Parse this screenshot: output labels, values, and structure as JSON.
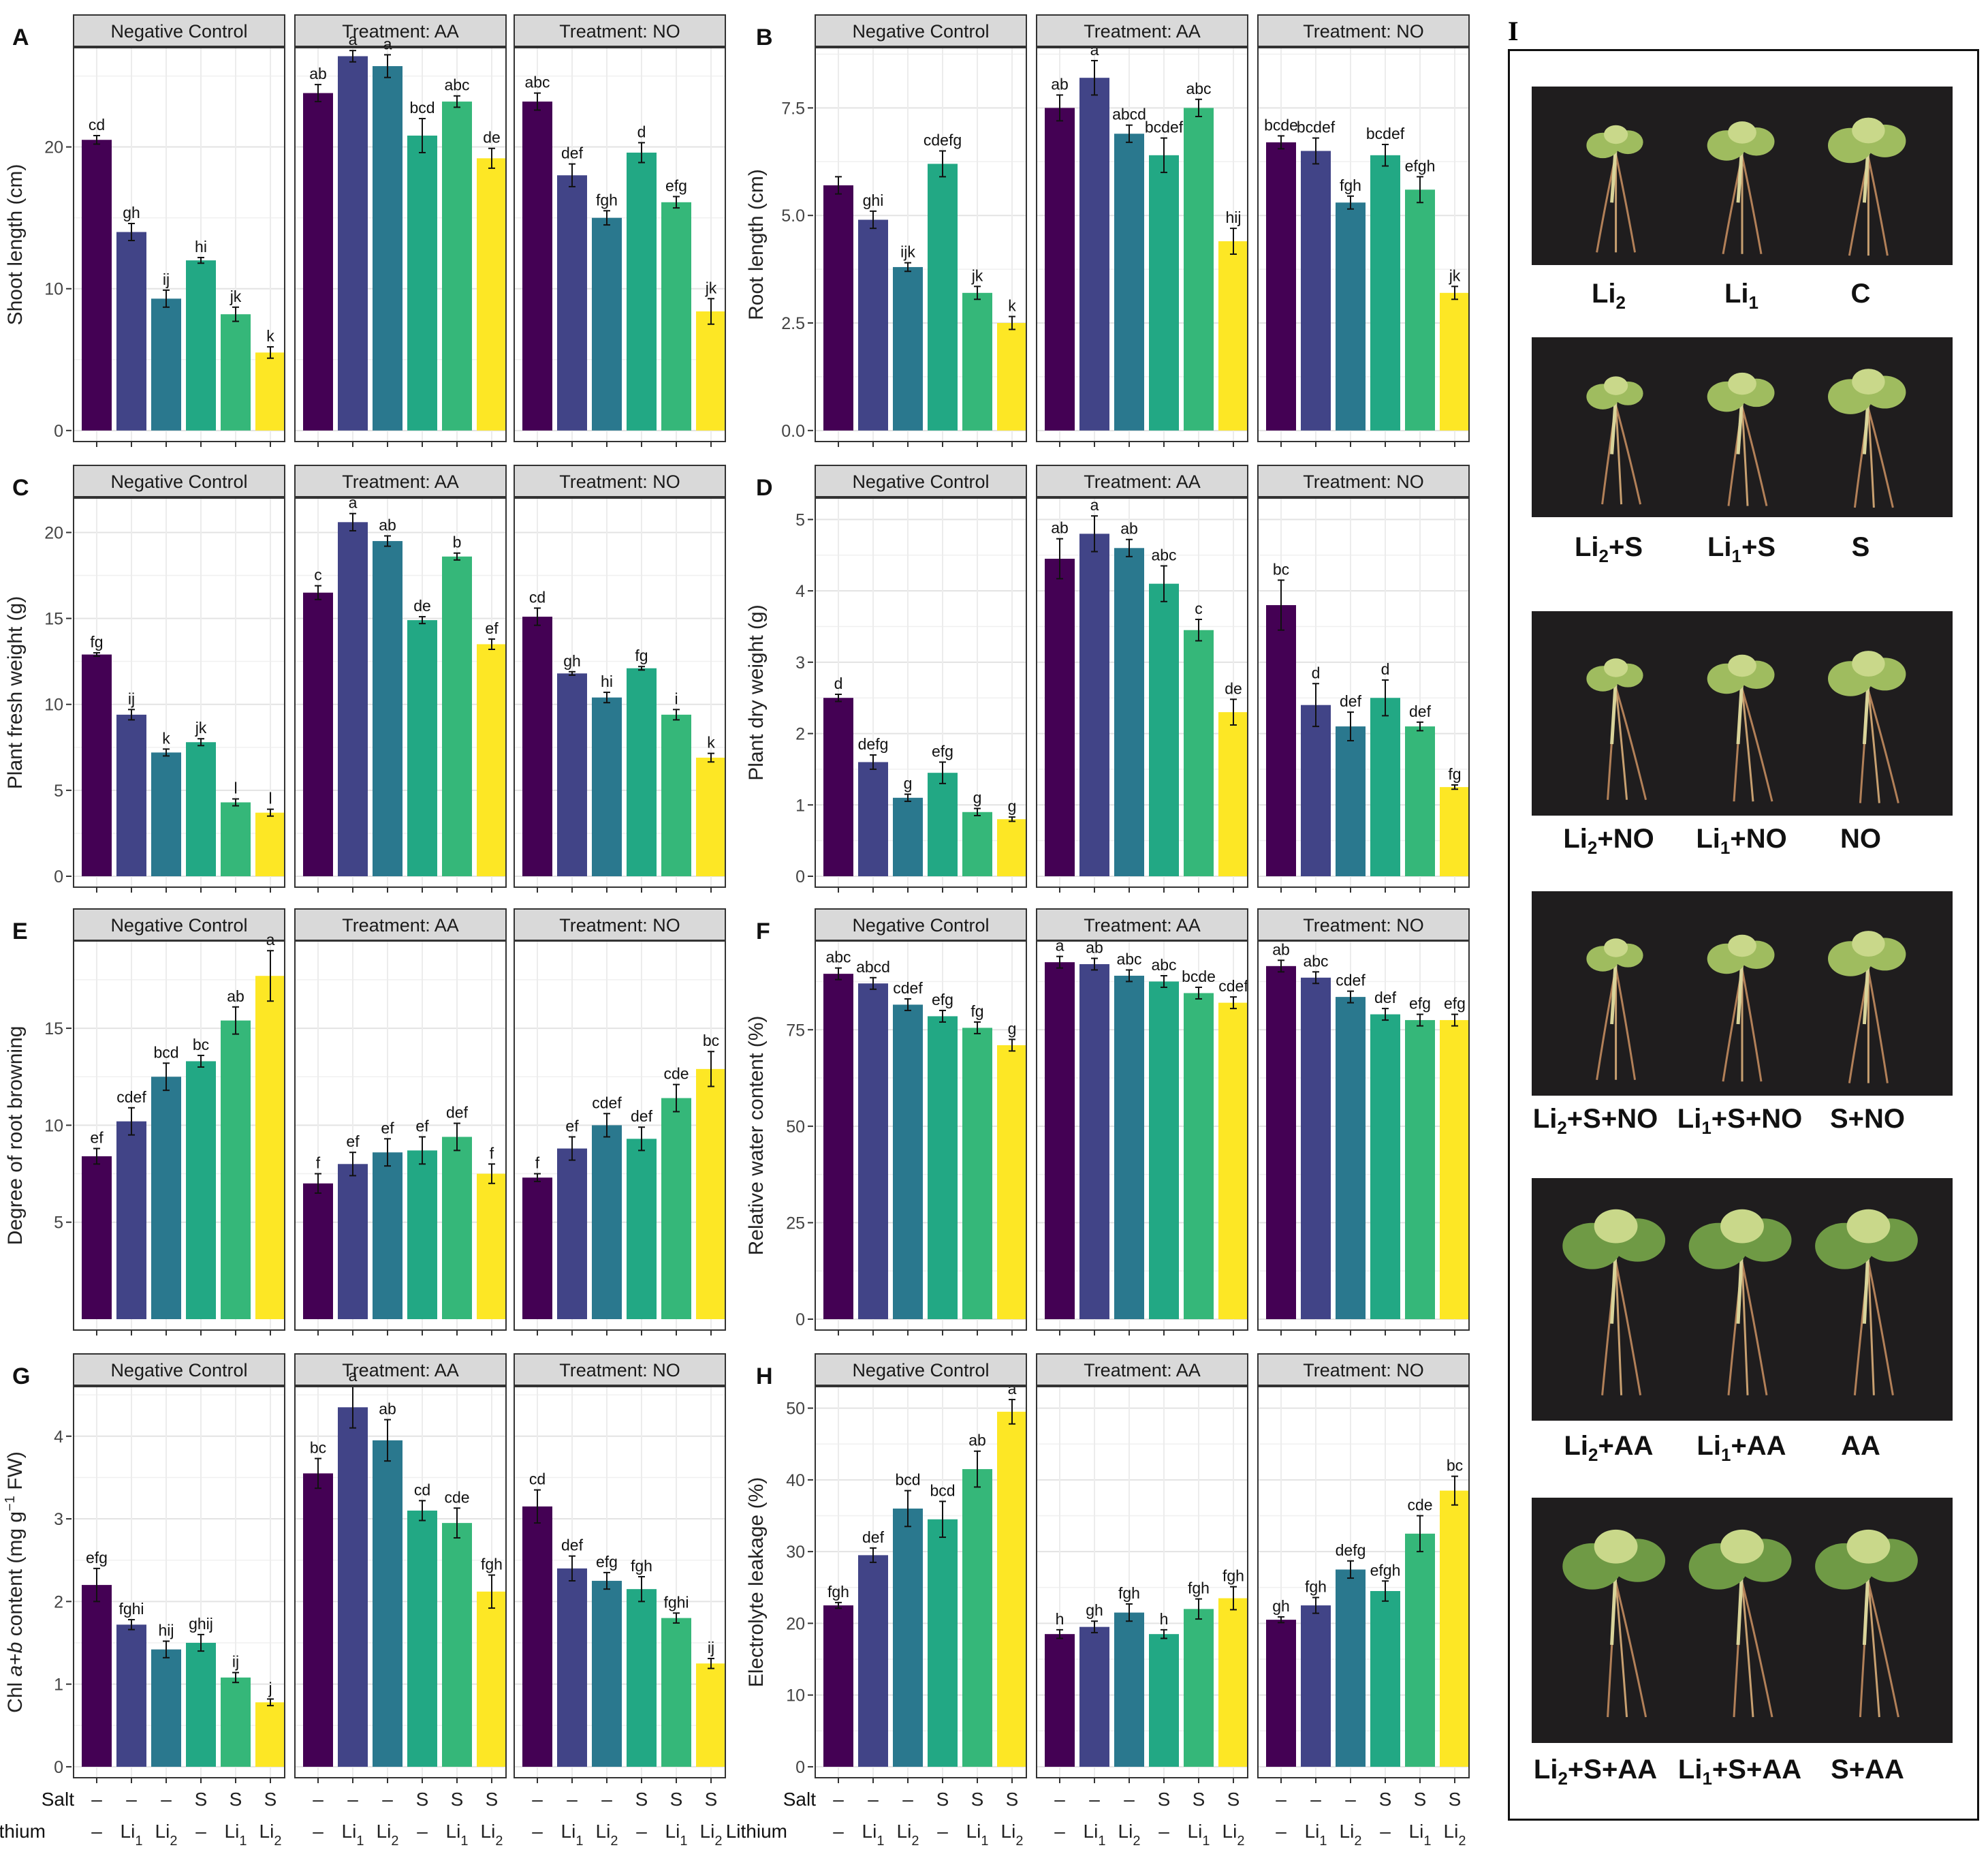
{
  "facets": [
    "Negative Control",
    "Treatment: AA",
    "Treatment: NO"
  ],
  "colors": [
    "#440154",
    "#414487",
    "#2a788e",
    "#22a884",
    "#35b779",
    "#fde725"
  ],
  "x_axis": {
    "salt_title": "Salt",
    "lithium_title": "Lithium",
    "salt": [
      "–",
      "–",
      "–",
      "S",
      "S",
      "S"
    ],
    "lithium": [
      {
        "t": "–",
        "s": ""
      },
      {
        "t": "Li",
        "s": "1"
      },
      {
        "t": "Li",
        "s": "2"
      },
      {
        "t": "–",
        "s": ""
      },
      {
        "t": "Li",
        "s": "1"
      },
      {
        "t": "Li",
        "s": "2"
      }
    ]
  },
  "chart_data": [
    {
      "panel": "A",
      "type": "bar",
      "ylabel": "Shoot length (cm)",
      "ylim": [
        0,
        27
      ],
      "ticks": [
        0,
        10,
        20
      ],
      "series": [
        {
          "facet": "Negative Control",
          "values": [
            20.5,
            14.0,
            9.3,
            12.0,
            8.2,
            5.5
          ],
          "errors": [
            0.3,
            0.6,
            0.6,
            0.2,
            0.5,
            0.4
          ],
          "letters": [
            "cd",
            "gh",
            "ij",
            "hi",
            "jk",
            "k"
          ]
        },
        {
          "facet": "Treatment: AA",
          "values": [
            23.8,
            26.4,
            25.7,
            20.8,
            23.2,
            19.2
          ],
          "errors": [
            0.6,
            0.4,
            0.8,
            1.2,
            0.4,
            0.7
          ],
          "letters": [
            "ab",
            "a",
            "a",
            "bcd",
            "abc",
            "de"
          ]
        },
        {
          "facet": "Treatment: NO",
          "values": [
            23.2,
            18.0,
            15.0,
            19.6,
            16.1,
            8.4
          ],
          "errors": [
            0.6,
            0.8,
            0.5,
            0.7,
            0.4,
            0.9
          ],
          "letters": [
            "abc",
            "def",
            "fgh",
            "d",
            "efg",
            "jk"
          ]
        }
      ]
    },
    {
      "panel": "B",
      "type": "bar",
      "ylabel": "Root length (cm)",
      "ylim": [
        0,
        8.9
      ],
      "ticks": [
        0.0,
        2.5,
        5.0,
        7.5
      ],
      "series": [
        {
          "facet": "Negative Control",
          "values": [
            5.7,
            4.9,
            3.8,
            6.2,
            3.2,
            2.5
          ],
          "errors": [
            0.2,
            0.2,
            0.1,
            0.3,
            0.15,
            0.15
          ],
          "letters": [
            "",
            "ghi",
            "ijk",
            "cdefg",
            "jk",
            "k"
          ]
        },
        {
          "facet": "Treatment: AA",
          "values": [
            7.5,
            8.2,
            6.9,
            6.4,
            7.5,
            4.4
          ],
          "errors": [
            0.3,
            0.4,
            0.2,
            0.4,
            0.2,
            0.3
          ],
          "letters": [
            "ab",
            "a",
            "abcd",
            "bcdef",
            "abc",
            "hij"
          ]
        },
        {
          "facet": "Treatment: NO",
          "values": [
            6.7,
            6.5,
            5.3,
            6.4,
            5.6,
            3.2
          ],
          "errors": [
            0.15,
            0.3,
            0.15,
            0.25,
            0.3,
            0.15
          ],
          "letters": [
            "bcde",
            "bcdef",
            "fgh",
            "bcdef",
            "efgh",
            "jk"
          ]
        }
      ]
    },
    {
      "panel": "C",
      "type": "bar",
      "ylabel": "Plant fresh weight (g)",
      "ylim": [
        0,
        22
      ],
      "ticks": [
        0,
        5,
        10,
        15,
        20
      ],
      "series": [
        {
          "facet": "Negative Control",
          "values": [
            12.9,
            9.4,
            7.2,
            7.8,
            4.3,
            3.7
          ],
          "errors": [
            0.1,
            0.3,
            0.2,
            0.2,
            0.2,
            0.2
          ],
          "letters": [
            "fg",
            "ij",
            "k",
            "jk",
            "l",
            "l"
          ]
        },
        {
          "facet": "Treatment: AA",
          "values": [
            16.5,
            20.6,
            19.5,
            14.9,
            18.6,
            13.5
          ],
          "errors": [
            0.4,
            0.5,
            0.3,
            0.2,
            0.2,
            0.3
          ],
          "letters": [
            "c",
            "a",
            "ab",
            "de",
            "b",
            "ef"
          ]
        },
        {
          "facet": "Treatment: NO",
          "values": [
            15.1,
            11.8,
            10.4,
            12.1,
            9.4,
            6.9
          ],
          "errors": [
            0.5,
            0.1,
            0.3,
            0.1,
            0.3,
            0.25
          ],
          "letters": [
            "cd",
            "gh",
            "hi",
            "fg",
            "i",
            "k"
          ]
        }
      ]
    },
    {
      "panel": "D",
      "type": "bar",
      "ylabel": "Plant dry weight (g)",
      "ylim": [
        0,
        5.3
      ],
      "ticks": [
        0,
        1,
        2,
        3,
        4,
        5
      ],
      "series": [
        {
          "facet": "Negative Control",
          "values": [
            2.5,
            1.6,
            1.1,
            1.45,
            0.9,
            0.8
          ],
          "errors": [
            0.05,
            0.1,
            0.05,
            0.15,
            0.05,
            0.03
          ],
          "letters": [
            "d",
            "defg",
            "g",
            "efg",
            "g",
            "g"
          ]
        },
        {
          "facet": "Treatment: AA",
          "values": [
            4.45,
            4.8,
            4.6,
            4.1,
            3.45,
            2.3
          ],
          "errors": [
            0.28,
            0.25,
            0.12,
            0.25,
            0.15,
            0.18
          ],
          "letters": [
            "ab",
            "a",
            "ab",
            "abc",
            "c",
            "de"
          ]
        },
        {
          "facet": "Treatment: NO",
          "values": [
            3.8,
            2.4,
            2.1,
            2.5,
            2.1,
            1.25
          ],
          "errors": [
            0.35,
            0.3,
            0.2,
            0.25,
            0.06,
            0.03
          ],
          "letters": [
            "bc",
            "d",
            "def",
            "d",
            "def",
            "fg"
          ]
        }
      ]
    },
    {
      "panel": "E",
      "type": "bar",
      "ylabel": "Degree of root browning",
      "ylim": [
        0,
        19.5
      ],
      "ticks": [
        5,
        10,
        15
      ],
      "series": [
        {
          "facet": "Negative Control",
          "values": [
            8.4,
            10.2,
            12.5,
            13.3,
            15.4,
            17.7
          ],
          "errors": [
            0.4,
            0.7,
            0.7,
            0.3,
            0.7,
            1.3
          ],
          "letters": [
            "ef",
            "cdef",
            "bcd",
            "bc",
            "ab",
            "a"
          ]
        },
        {
          "facet": "Treatment: AA",
          "values": [
            7.0,
            8.0,
            8.6,
            8.7,
            9.4,
            7.5
          ],
          "errors": [
            0.5,
            0.6,
            0.7,
            0.7,
            0.7,
            0.5
          ],
          "letters": [
            "f",
            "ef",
            "ef",
            "ef",
            "def",
            "f"
          ]
        },
        {
          "facet": "Treatment: NO",
          "values": [
            7.3,
            8.8,
            10.0,
            9.3,
            11.4,
            12.9
          ],
          "errors": [
            0.2,
            0.6,
            0.6,
            0.6,
            0.7,
            0.9
          ],
          "letters": [
            "f",
            "ef",
            "cdef",
            "def",
            "cde",
            "bc"
          ]
        }
      ]
    },
    {
      "panel": "F",
      "type": "bar",
      "ylabel": "Relative water content (%)",
      "ylim": [
        0,
        98
      ],
      "ticks": [
        0,
        25,
        50,
        75
      ],
      "series": [
        {
          "facet": "Negative Control",
          "values": [
            89.5,
            87.0,
            81.5,
            78.5,
            75.5,
            71.0
          ],
          "errors": [
            1.5,
            1.5,
            1.5,
            1.5,
            1.5,
            1.5
          ],
          "letters": [
            "abc",
            "abcd",
            "cdef",
            "efg",
            "fg",
            "g"
          ]
        },
        {
          "facet": "Treatment: AA",
          "values": [
            92.5,
            92.0,
            89.0,
            87.5,
            84.5,
            82.0
          ],
          "errors": [
            1.5,
            1.5,
            1.5,
            1.5,
            1.5,
            1.5
          ],
          "letters": [
            "a",
            "ab",
            "abc",
            "abc",
            "bcde",
            "cdef"
          ]
        },
        {
          "facet": "Treatment: NO",
          "values": [
            91.5,
            88.5,
            83.5,
            79.0,
            77.5,
            77.5
          ],
          "errors": [
            1.5,
            1.5,
            1.5,
            1.5,
            1.5,
            1.5
          ],
          "letters": [
            "ab",
            "abc",
            "cdef",
            "def",
            "efg",
            "efg"
          ]
        }
      ]
    },
    {
      "panel": "G",
      "type": "bar",
      "ylabel": "Chl a+b content (mg g−1 FW)",
      "ylim": [
        0,
        4.6
      ],
      "ticks": [
        0,
        1,
        2,
        3,
        4
      ],
      "series": [
        {
          "facet": "Negative Control",
          "values": [
            2.2,
            1.72,
            1.42,
            1.5,
            1.08,
            0.78
          ],
          "errors": [
            0.2,
            0.06,
            0.1,
            0.1,
            0.06,
            0.04
          ],
          "letters": [
            "efg",
            "fghi",
            "hij",
            "ghij",
            "ij",
            "j"
          ]
        },
        {
          "facet": "Treatment: AA",
          "values": [
            3.55,
            4.35,
            3.95,
            3.1,
            2.95,
            2.12
          ],
          "errors": [
            0.18,
            0.25,
            0.25,
            0.12,
            0.18,
            0.2
          ],
          "letters": [
            "bc",
            "a",
            "ab",
            "cd",
            "cde",
            "fgh"
          ]
        },
        {
          "facet": "Treatment: NO",
          "values": [
            3.15,
            2.4,
            2.25,
            2.15,
            1.8,
            1.25
          ],
          "errors": [
            0.2,
            0.15,
            0.1,
            0.15,
            0.06,
            0.06
          ],
          "letters": [
            "cd",
            "def",
            "efg",
            "fgh",
            "fghi",
            "ij"
          ]
        }
      ]
    },
    {
      "panel": "H",
      "type": "bar",
      "ylabel": "Electrolyte leakage (%)",
      "ylim": [
        0,
        53
      ],
      "ticks": [
        0,
        10,
        20,
        30,
        40,
        50
      ],
      "series": [
        {
          "facet": "Negative Control",
          "values": [
            22.5,
            29.5,
            36.0,
            34.5,
            41.5,
            49.5
          ],
          "errors": [
            0.4,
            1.0,
            2.5,
            2.5,
            2.5,
            1.7
          ],
          "letters": [
            "fgh",
            "def",
            "bcd",
            "bcd",
            "ab",
            "a"
          ]
        },
        {
          "facet": "Treatment: AA",
          "values": [
            18.5,
            19.5,
            21.5,
            18.5,
            22.0,
            23.5
          ],
          "errors": [
            0.6,
            0.8,
            1.2,
            0.6,
            1.4,
            1.6
          ],
          "letters": [
            "h",
            "gh",
            "fgh",
            "h",
            "fgh",
            "fgh"
          ]
        },
        {
          "facet": "Treatment: NO",
          "values": [
            20.5,
            22.5,
            27.5,
            24.5,
            32.5,
            38.5
          ],
          "errors": [
            0.4,
            1.1,
            1.2,
            1.4,
            2.5,
            2.0
          ],
          "letters": [
            "gh",
            "fgh",
            "defg",
            "efgh",
            "cde",
            "bc"
          ]
        }
      ]
    }
  ],
  "photos": {
    "panel_letter": "I",
    "rows": [
      {
        "labels": [
          {
            "b": "Li",
            "s": "2",
            "a": ""
          },
          {
            "b": "Li",
            "s": "1",
            "a": ""
          },
          {
            "b": "C",
            "s": "",
            "a": ""
          }
        ]
      },
      {
        "labels": [
          {
            "b": "Li",
            "s": "2",
            "a": "+S"
          },
          {
            "b": "Li",
            "s": "1",
            "a": "+S"
          },
          {
            "b": "S",
            "s": "",
            "a": ""
          }
        ]
      },
      {
        "labels": [
          {
            "b": "Li",
            "s": "2",
            "a": "+NO"
          },
          {
            "b": "Li",
            "s": "1",
            "a": "+NO"
          },
          {
            "b": "NO",
            "s": "",
            "a": ""
          }
        ]
      },
      {
        "labels": [
          {
            "b": "Li",
            "s": "2",
            "a": "+S+NO"
          },
          {
            "b": "Li",
            "s": "1",
            "a": "+S+NO"
          },
          {
            "b": "S+NO",
            "s": "",
            "a": ""
          }
        ]
      },
      {
        "labels": [
          {
            "b": "Li",
            "s": "2",
            "a": "+AA"
          },
          {
            "b": "Li",
            "s": "1",
            "a": "+AA"
          },
          {
            "b": "AA",
            "s": "",
            "a": ""
          }
        ]
      },
      {
        "labels": [
          {
            "b": "Li",
            "s": "2",
            "a": "+S+AA"
          },
          {
            "b": "Li",
            "s": "1",
            "a": "+S+AA"
          },
          {
            "b": "S+AA",
            "s": "",
            "a": ""
          }
        ]
      }
    ]
  }
}
